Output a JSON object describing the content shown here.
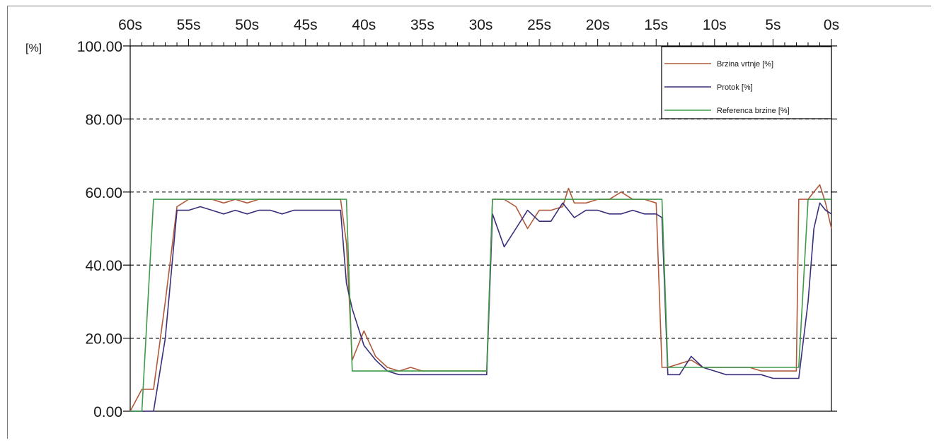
{
  "chart_data": {
    "type": "line",
    "title": "",
    "xlabel": "",
    "ylabel": "[%]",
    "y_unit": "[%]",
    "xlim": [
      60,
      0
    ],
    "ylim": [
      0,
      100
    ],
    "x_ticks": [
      "60s",
      "55s",
      "50s",
      "45s",
      "40s",
      "35s",
      "30s",
      "25s",
      "20s",
      "15s",
      "10s",
      "5s",
      "0s"
    ],
    "y_ticks": [
      "0.00",
      "20.00",
      "40.00",
      "60.00",
      "80.00",
      "100.00"
    ],
    "grid": "horizontal-dashed",
    "legend_position": "top-right",
    "colors": {
      "brzina": "#b05a3c",
      "protok": "#3a2f7a",
      "referenca": "#3f9a4a"
    },
    "series": [
      {
        "name": "Brzina vrtnje [%]",
        "color_key": "brzina",
        "x": [
          60,
          59,
          58,
          57,
          56,
          55,
          54,
          53,
          52,
          51,
          50,
          49,
          48,
          47,
          46,
          45,
          44,
          43,
          42,
          41.5,
          41,
          40,
          39,
          38,
          37,
          36,
          35,
          34,
          33,
          32,
          31,
          30,
          29.5,
          29,
          28,
          27,
          26,
          25,
          24,
          23,
          22.5,
          22,
          21,
          20,
          19,
          18,
          17,
          16,
          15,
          14.5,
          14,
          13,
          12,
          11,
          10,
          9,
          8,
          7,
          6,
          5,
          4,
          3,
          2.8,
          2,
          1.5,
          1,
          0.5,
          0
        ],
        "y": [
          0,
          6,
          6,
          30,
          56,
          58,
          58,
          58,
          57,
          58,
          57,
          58,
          58,
          58,
          58,
          58,
          58,
          58,
          58,
          46,
          14,
          22,
          15,
          12,
          11,
          12,
          11,
          11,
          11,
          11,
          11,
          11,
          11,
          58,
          58,
          56,
          50,
          55,
          55,
          56,
          61,
          57,
          57,
          58,
          58,
          60,
          58,
          58,
          57,
          12,
          12,
          13,
          14,
          12,
          12,
          12,
          12,
          12,
          11,
          11,
          11,
          11,
          58,
          58,
          60,
          62,
          57,
          50
        ]
      },
      {
        "name": "Protok [%]",
        "color_key": "protok",
        "x": [
          60,
          59,
          58,
          57,
          56,
          55,
          54,
          53,
          52,
          51,
          50,
          49,
          48,
          47,
          46,
          45,
          44,
          43,
          42,
          41.5,
          41,
          40,
          39,
          38,
          37,
          36,
          35,
          34,
          33,
          32,
          31,
          30,
          29.5,
          29,
          28,
          27,
          26,
          25,
          24,
          23,
          22,
          21,
          20,
          19,
          18,
          17,
          16,
          15,
          14.5,
          14,
          13,
          12,
          11,
          10,
          9,
          8,
          7,
          6,
          5,
          4,
          3,
          2.8,
          2,
          1.5,
          1,
          0.5,
          0
        ],
        "y": [
          0,
          0,
          0,
          20,
          55,
          55,
          56,
          55,
          54,
          55,
          54,
          55,
          55,
          54,
          55,
          55,
          55,
          55,
          55,
          35,
          28,
          18,
          14,
          11,
          10,
          10,
          10,
          10,
          10,
          10,
          10,
          10,
          10,
          54,
          45,
          50,
          55,
          52,
          52,
          57,
          53,
          55,
          55,
          54,
          54,
          55,
          54,
          54,
          53,
          10,
          10,
          15,
          12,
          11,
          10,
          10,
          10,
          10,
          9,
          9,
          9,
          9,
          30,
          50,
          57,
          55,
          54
        ]
      },
      {
        "name": "Referenca brzine [%]",
        "color_key": "referenca",
        "x": [
          60,
          59,
          58,
          57,
          56,
          55,
          54,
          53,
          52,
          51,
          50,
          49,
          48,
          47,
          46,
          45,
          44,
          43,
          42,
          41.5,
          41,
          40,
          39,
          38,
          37,
          36,
          35,
          34,
          33,
          32,
          31,
          30,
          29.5,
          29,
          28,
          27,
          26,
          25,
          24,
          23,
          22,
          21,
          20,
          19,
          18,
          17,
          16,
          15,
          14.5,
          14,
          13,
          12,
          11,
          10,
          9,
          8,
          7,
          6,
          5,
          4,
          3,
          2.8,
          2,
          1.5,
          1,
          0.5,
          0
        ],
        "y": [
          0,
          0,
          58,
          58,
          58,
          58,
          58,
          58,
          58,
          58,
          58,
          58,
          58,
          58,
          58,
          58,
          58,
          58,
          58,
          58,
          11,
          11,
          11,
          11,
          11,
          11,
          11,
          11,
          11,
          11,
          11,
          11,
          11,
          58,
          58,
          58,
          58,
          58,
          58,
          58,
          58,
          58,
          58,
          58,
          58,
          58,
          58,
          58,
          58,
          12,
          12,
          12,
          12,
          12,
          12,
          12,
          12,
          12,
          12,
          12,
          12,
          12,
          58,
          58,
          58,
          58,
          58
        ]
      }
    ]
  }
}
